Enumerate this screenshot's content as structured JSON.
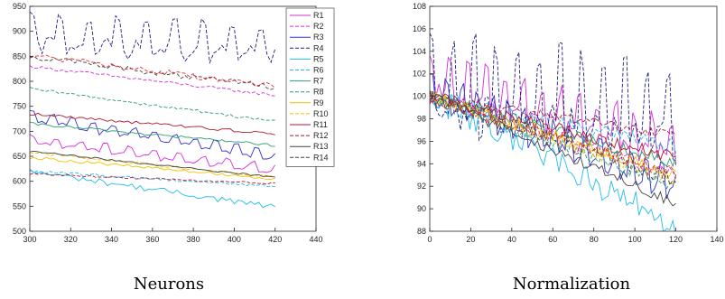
{
  "chart_data": [
    {
      "type": "line",
      "caption": "Neurons",
      "xlim": [
        300,
        440
      ],
      "ylim": [
        500,
        950
      ],
      "xticks": [
        300,
        320,
        340,
        360,
        380,
        400,
        420,
        440
      ],
      "yticks": [
        500,
        550,
        600,
        650,
        700,
        750,
        800,
        850,
        900,
        950
      ],
      "grid": false,
      "legend_placement": "top-right",
      "series": [
        {
          "name": "R1",
          "color": "#d62fd6",
          "dash": "solid",
          "x_range": [
            300,
            420
          ],
          "start": 680,
          "end": 620,
          "noise": 12,
          "period": 6
        },
        {
          "name": "R2",
          "color": "#d62fd6",
          "dash": "dashed",
          "x_range": [
            300,
            420
          ],
          "start": 830,
          "end": 772,
          "noise": 3,
          "period": 0
        },
        {
          "name": "R3",
          "color": "#3333cc",
          "dash": "solid",
          "x_range": [
            300,
            420
          ],
          "start": 725,
          "end": 645,
          "noise": 14,
          "period": 5
        },
        {
          "name": "R4",
          "color": "#1f1f7a",
          "dash": "dashed",
          "x_range": [
            300,
            420
          ],
          "start": 885,
          "end": 860,
          "noise": 45,
          "period": 7
        },
        {
          "name": "R5",
          "color": "#22bbee",
          "dash": "solid",
          "x_range": [
            300,
            420
          ],
          "start": 620,
          "end": 548,
          "noise": 6,
          "period": 0
        },
        {
          "name": "R6",
          "color": "#22bbee",
          "dash": "dashed",
          "x_range": [
            300,
            420
          ],
          "start": 620,
          "end": 590,
          "noise": 3,
          "period": 0
        },
        {
          "name": "R7",
          "color": "#2e9e6e",
          "dash": "solid",
          "x_range": [
            300,
            420
          ],
          "start": 715,
          "end": 672,
          "noise": 3,
          "period": 0
        },
        {
          "name": "R8",
          "color": "#2e9e6e",
          "dash": "dashed",
          "x_range": [
            300,
            420
          ],
          "start": 785,
          "end": 720,
          "noise": 3,
          "period": 0
        },
        {
          "name": "R9",
          "color": "#f2c200",
          "dash": "solid",
          "x_range": [
            300,
            420
          ],
          "start": 648,
          "end": 605,
          "noise": 3,
          "period": 0
        },
        {
          "name": "R10",
          "color": "#f2c200",
          "dash": "dashed",
          "x_range": [
            300,
            420
          ],
          "start": 658,
          "end": 608,
          "noise": 3,
          "period": 0
        },
        {
          "name": "R11",
          "color": "#b0182f",
          "dash": "solid",
          "x_range": [
            300,
            420
          ],
          "start": 735,
          "end": 695,
          "noise": 3,
          "period": 0
        },
        {
          "name": "R12",
          "color": "#b0182f",
          "dash": "dashed",
          "x_range": [
            300,
            420
          ],
          "start": 615,
          "end": 595,
          "noise": 2,
          "period": 0
        },
        {
          "name": "R13",
          "color": "#444444",
          "dash": "solid",
          "x_range": [
            300,
            420
          ],
          "start": 660,
          "end": 608,
          "noise": 2,
          "period": 0
        },
        {
          "name": "R14",
          "color": "#444444",
          "dash": "dashed",
          "x_range": [
            300,
            420
          ],
          "start": 850,
          "end": 787,
          "noise": 6,
          "period": 0
        },
        {
          "name": "",
          "color": "#ee2a2a",
          "dash": "dashed",
          "x_range": [
            300,
            420
          ],
          "start": 852,
          "end": 790,
          "noise": 6,
          "period": 0
        }
      ]
    },
    {
      "type": "line",
      "caption": "Normalization",
      "xlim": [
        0,
        140
      ],
      "ylim": [
        88,
        108
      ],
      "xticks": [
        0,
        20,
        40,
        60,
        80,
        100,
        120,
        140
      ],
      "yticks": [
        88,
        90,
        92,
        94,
        96,
        98,
        100,
        102,
        104,
        106,
        108
      ],
      "grid": false,
      "series": [
        {
          "color": "#d62fd6",
          "dash": "solid",
          "x_range": [
            0,
            120
          ],
          "start": 101,
          "end": 95,
          "noise": 2.5,
          "period": 6
        },
        {
          "color": "#d62fd6",
          "dash": "dashed",
          "x_range": [
            0,
            120
          ],
          "start": 100,
          "end": 93,
          "noise": 0.6,
          "period": 0
        },
        {
          "color": "#3333cc",
          "dash": "solid",
          "x_range": [
            0,
            120
          ],
          "start": 100,
          "end": 91.5,
          "noise": 1.8,
          "period": 5
        },
        {
          "color": "#1f1f7a",
          "dash": "dashed",
          "x_range": [
            0,
            120
          ],
          "start": 100,
          "end": 97,
          "noise": 5,
          "period": 7
        },
        {
          "color": "#22bbee",
          "dash": "solid",
          "x_range": [
            0,
            120
          ],
          "start": 100,
          "end": 88.5,
          "noise": 1.2,
          "period": 0
        },
        {
          "color": "#22bbee",
          "dash": "dashed",
          "x_range": [
            0,
            120
          ],
          "start": 100,
          "end": 95.5,
          "noise": 0.6,
          "period": 0
        },
        {
          "color": "#2e9e6e",
          "dash": "solid",
          "x_range": [
            0,
            120
          ],
          "start": 100,
          "end": 94,
          "noise": 0.6,
          "period": 0
        },
        {
          "color": "#2e9e6e",
          "dash": "dashed",
          "x_range": [
            0,
            120
          ],
          "start": 100,
          "end": 92,
          "noise": 0.6,
          "period": 0
        },
        {
          "color": "#f2c200",
          "dash": "solid",
          "x_range": [
            0,
            120
          ],
          "start": 100,
          "end": 93,
          "noise": 0.6,
          "period": 0
        },
        {
          "color": "#f2c200",
          "dash": "dashed",
          "x_range": [
            0,
            120
          ],
          "start": 100,
          "end": 92.5,
          "noise": 0.6,
          "period": 0
        },
        {
          "color": "#b0182f",
          "dash": "solid",
          "x_range": [
            0,
            120
          ],
          "start": 100,
          "end": 94.5,
          "noise": 0.6,
          "period": 0
        },
        {
          "color": "#b0182f",
          "dash": "dashed",
          "x_range": [
            0,
            120
          ],
          "start": 100,
          "end": 96.5,
          "noise": 0.4,
          "period": 0
        },
        {
          "color": "#444444",
          "dash": "solid",
          "x_range": [
            0,
            120
          ],
          "start": 100,
          "end": 90.5,
          "noise": 0.5,
          "period": 0
        },
        {
          "color": "#444444",
          "dash": "dashed",
          "x_range": [
            0,
            120
          ],
          "start": 100,
          "end": 92.5,
          "noise": 0.8,
          "period": 0
        },
        {
          "color": "#ee2a2a",
          "dash": "dashed",
          "x_range": [
            0,
            120
          ],
          "start": 100,
          "end": 93,
          "noise": 0.8,
          "period": 0
        }
      ]
    }
  ]
}
